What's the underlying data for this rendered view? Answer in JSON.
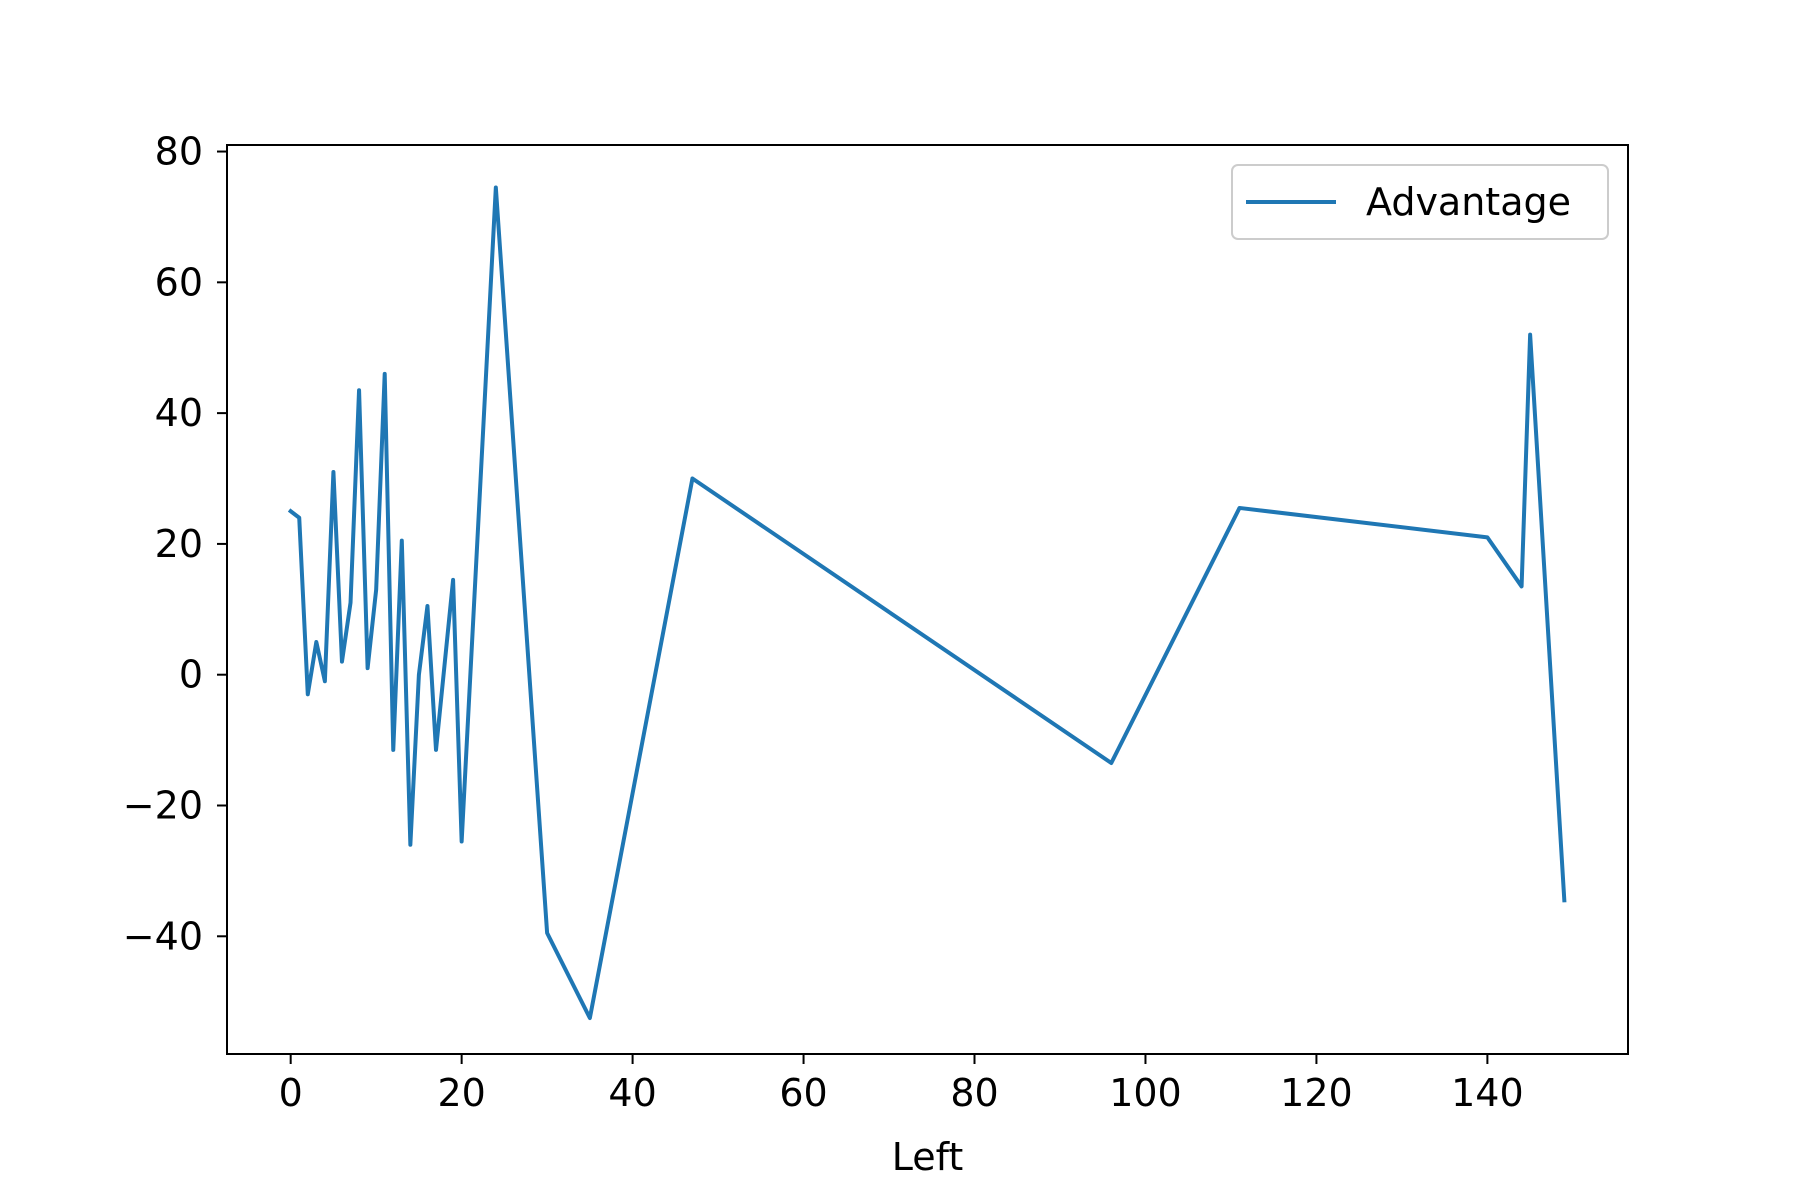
{
  "chart_data": {
    "type": "line",
    "title": "",
    "xlabel": "Left",
    "ylabel": "",
    "xlim": [
      -7.45,
      156.45
    ],
    "ylim": [
      -58.0,
      81.0
    ],
    "xticks": [
      0,
      20,
      40,
      60,
      80,
      100,
      120,
      140
    ],
    "yticks": [
      -40,
      -20,
      0,
      20,
      40,
      60,
      80
    ],
    "xtick_labels": [
      "0",
      "20",
      "40",
      "60",
      "80",
      "100",
      "120",
      "140"
    ],
    "ytick_labels": [
      "−40",
      "−20",
      "0",
      "20",
      "40",
      "60",
      "80"
    ],
    "grid": false,
    "legend_position": "top-right",
    "series": [
      {
        "name": "Advantage",
        "color": "#1f77b4",
        "x": [
          0,
          1,
          2,
          3,
          4,
          5,
          6,
          7,
          8,
          9,
          10,
          11,
          12,
          13,
          14,
          15,
          16,
          17,
          19,
          20,
          24,
          30,
          35,
          47,
          96,
          111,
          140,
          144,
          145,
          149
        ],
        "y": [
          25,
          24,
          -3,
          5,
          -1,
          31,
          2,
          11,
          43.5,
          1,
          13,
          46,
          -11.5,
          20.5,
          -26,
          0,
          10.5,
          -11.5,
          14.5,
          -25.5,
          74.5,
          -39.5,
          -52.5,
          30,
          -13.5,
          25.5,
          21,
          13.5,
          52,
          -34.5
        ]
      }
    ]
  }
}
